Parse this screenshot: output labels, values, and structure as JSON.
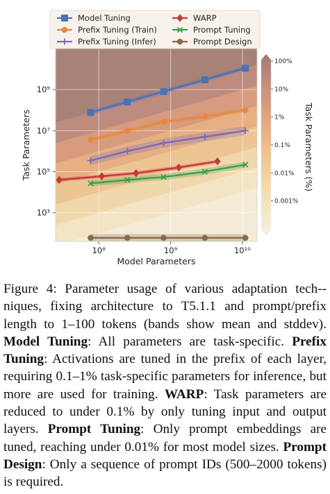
{
  "chart_data": {
    "type": "line",
    "xlabel": "Model Parameters",
    "ylabel": "Task Parameters",
    "colorbar_label": "Task Parameters (%)",
    "xscale": "log",
    "yscale": "log",
    "xlim": [
      25000000.0,
      16000000000.0
    ],
    "ylim": [
      40.0,
      100000000000.0
    ],
    "x_ticks": [
      {
        "value": 100000000.0,
        "label": "10⁸"
      },
      {
        "value": 1000000000.0,
        "label": "10⁹"
      },
      {
        "value": 10000000000.0,
        "label": "10¹⁰"
      }
    ],
    "y_ticks": [
      {
        "value": 1000.0,
        "label": "10³"
      },
      {
        "value": 100000.0,
        "label": "10⁵"
      },
      {
        "value": 10000000.0,
        "label": "10⁷"
      },
      {
        "value": 1000000000.0,
        "label": "10⁹"
      }
    ],
    "colorbar_ticks": [
      {
        "value": 100,
        "label": "100%"
      },
      {
        "value": 10,
        "label": "10%"
      },
      {
        "value": 1,
        "label": "1%"
      },
      {
        "value": 0.1,
        "label": "0.1%"
      },
      {
        "value": 0.01,
        "label": "0.01%"
      },
      {
        "value": 0.001,
        "label": "0.001%"
      }
    ],
    "legend_position": "top",
    "series": [
      {
        "name": "Model Tuning",
        "color": "#4a72b8",
        "marker": "square",
        "x": [
          77000000.0,
          250000000.0,
          800000000.0,
          3000000000.0,
          11000000000.0
        ],
        "y": [
          77000000.0,
          250000000.0,
          800000000.0,
          3000000000.0,
          11000000000.0
        ],
        "band": 0.12
      },
      {
        "name": "Prefix Tuning (Train)",
        "color": "#e58a3d",
        "marker": "circle",
        "x": [
          77000000.0,
          250000000.0,
          800000000.0,
          3000000000.0,
          11000000000.0
        ],
        "y": [
          3500000.0,
          10000000.0,
          27000000.0,
          50000000.0,
          100000000.0
        ],
        "band": 0.12
      },
      {
        "name": "Prefix Tuning (Infer)",
        "color": "#7b68b8",
        "marker": "plus",
        "x": [
          77000000.0,
          250000000.0,
          800000000.0,
          3000000000.0,
          11000000000.0
        ],
        "y": [
          350000.0,
          1000000.0,
          2500000.0,
          5000000.0,
          10000000.0
        ],
        "band": 0.22
      },
      {
        "name": "WARP",
        "color": "#c8373a",
        "marker": "diamond",
        "x": [
          28000000.0,
          110000000.0,
          330000000.0,
          1300000000.0,
          4500000000.0
        ],
        "y": [
          40000.0,
          60000.0,
          85000.0,
          160000.0,
          320000.0
        ],
        "band": 0.1
      },
      {
        "name": "Prompt Tuning",
        "color": "#3aa04a",
        "marker": "x",
        "x": [
          77000000.0,
          250000000.0,
          800000000.0,
          3000000000.0,
          11000000000.0
        ],
        "y": [
          27000.0,
          40000.0,
          55000.0,
          100000.0,
          220000.0
        ],
        "band": 0.15
      },
      {
        "name": "Prompt Design",
        "color": "#8b6a4a",
        "marker": "circle",
        "x": [
          77000000.0,
          250000000.0,
          800000000.0,
          3000000000.0,
          11000000000.0
        ],
        "y": [
          60,
          60,
          60,
          60,
          60
        ],
        "band": 0.18
      }
    ]
  },
  "caption": {
    "figure_label": "Figure 4:",
    "intro": "Parameter usage of various adaptation tech-­niques, fixing architecture to T5.1.1 and prompt/prefix length to 1–100 tokens (bands show mean and stddev).",
    "model_tuning_term": "Model Tuning",
    "model_tuning_text": ": All parameters are task-specific.",
    "prefix_tuning_term": "Prefix Tuning",
    "prefix_tuning_text": ": Activations are tuned in the prefix of each layer, requiring 0.1–1% task-specific parameters for inference, but more are used for training.",
    "warp_term": "WARP",
    "warp_text": ": Task parameters are reduced to under 0.1% by only tuning input and output layers.",
    "prompt_tuning_term": "Prompt Tuning",
    "prompt_tuning_text": ": Only prompt embeddings are tuned, reaching under 0.01% for most model sizes.",
    "prompt_design_term": "Prompt Design",
    "prompt_design_text": ": Only a sequence of prompt IDs (500–2000 tokens) is required."
  }
}
